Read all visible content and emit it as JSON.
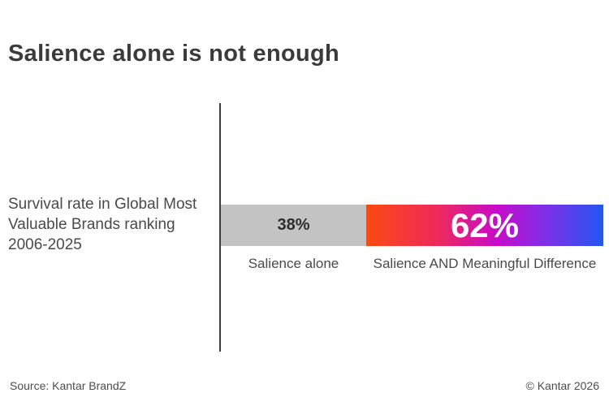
{
  "title": "Salience alone is not enough",
  "row_label": "Survival rate in Global Most Valuable Brands ranking 2006-2025",
  "footer": {
    "source": "Source: Kantar BrandZ",
    "copyright": "© Kantar 2026"
  },
  "colors": {
    "title_text": "#3b3b3b",
    "body_text": "#4a4a4a",
    "axis_line": "#3c3c3c",
    "gray_segment": "#c3c3c3",
    "gradient_stops": [
      "#fb4a10 0%",
      "#ee2a5b 30%",
      "#c70bc9 55%",
      "#7d30e8 76%",
      "#2256f2 100%"
    ]
  },
  "chart_data": {
    "type": "bar",
    "subtype": "horizontal-stacked-100",
    "categories": [
      "Survival rate in Global Most Valuable Brands ranking 2006-2025"
    ],
    "series": [
      {
        "name": "Salience alone",
        "values": [
          38
        ],
        "data_label": "38%",
        "color": "#c3c3c3"
      },
      {
        "name": "Salience AND Meaningful Difference",
        "values": [
          62
        ],
        "data_label": "62%",
        "gradient": [
          "#fb4a10 0%",
          "#ee2a5b 30%",
          "#c70bc9 55%",
          "#7d30e8 76%",
          "#2256f2 100%"
        ]
      }
    ],
    "title": "Salience alone is not enough",
    "xlabel": "",
    "ylabel": "",
    "xlim": [
      0,
      100
    ],
    "grid": false,
    "legend_position": "below-bar"
  }
}
